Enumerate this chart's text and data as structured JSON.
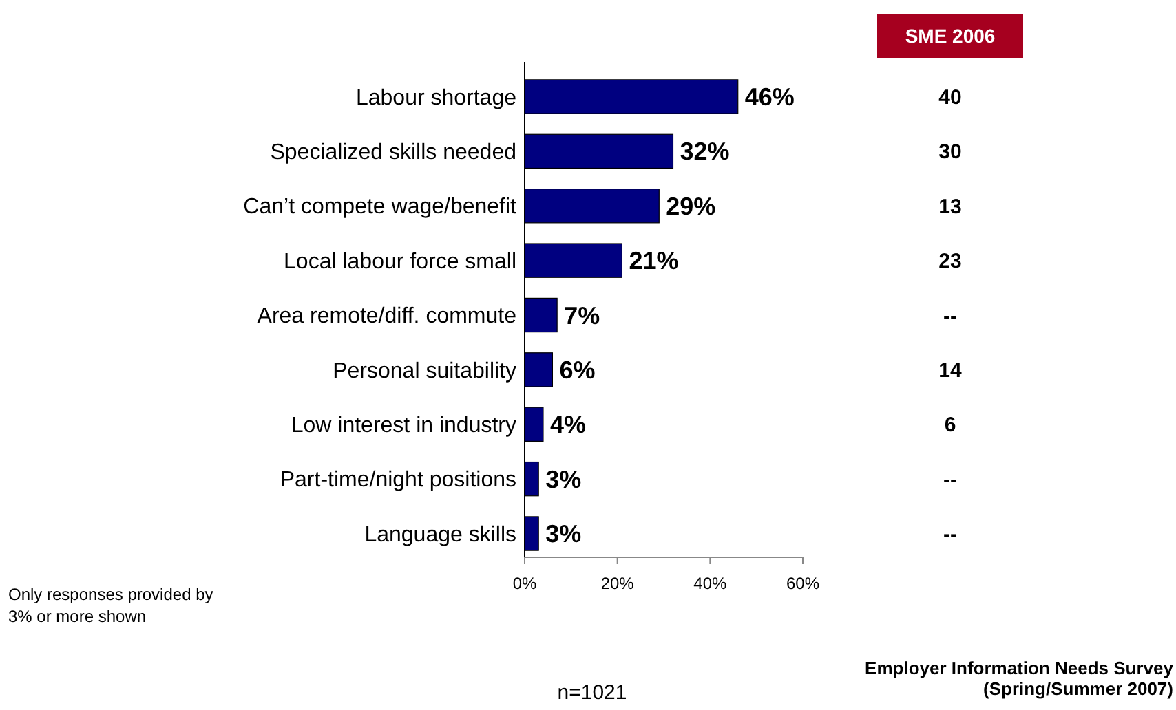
{
  "chart_data": {
    "type": "bar",
    "orientation": "horizontal",
    "categories": [
      "Labour shortage",
      "Specialized skills needed",
      "Can’t compete wage/benefit",
      "Local labour force small",
      "Area remote/diff. commute",
      "Personal suitability",
      "Low interest in industry",
      "Part-time/night positions",
      "Language skills"
    ],
    "values": [
      46,
      32,
      29,
      21,
      7,
      6,
      4,
      3,
      3
    ],
    "value_labels": [
      "46%",
      "32%",
      "29%",
      "21%",
      "7%",
      "6%",
      "4%",
      "3%",
      "3%"
    ],
    "color": "#000080",
    "xlim": [
      0,
      60
    ],
    "xticks": [
      {
        "value": 0,
        "label": "0%"
      },
      {
        "value": 20,
        "label": "20%"
      },
      {
        "value": 40,
        "label": "40%"
      },
      {
        "value": 60,
        "label": "60%"
      }
    ],
    "grid": false,
    "annotations": [
      "SME 2006",
      "Only responses provided by 3% or more shown",
      "n=1021",
      "Employer Information Needs Survey (Spring/Summer 2007)",
      "40",
      "30",
      "13",
      "23",
      "--",
      "14",
      "6",
      "--",
      "--"
    ]
  }
}
